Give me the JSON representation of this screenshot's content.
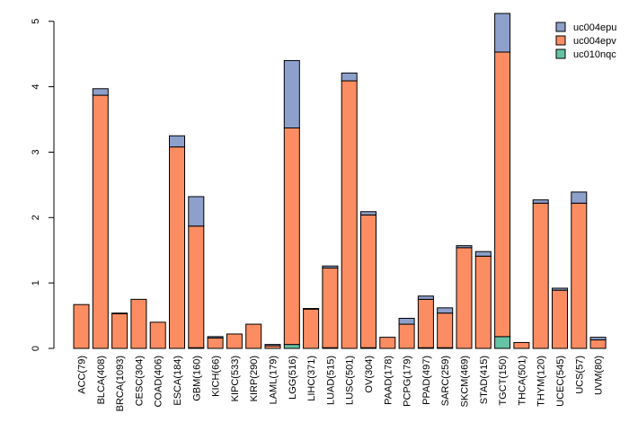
{
  "chart_data": {
    "type": "bar",
    "stacked": true,
    "categories": [
      "ACC(79)",
      "BLCA(408)",
      "BRCA(1093)",
      "CESC(304)",
      "COAD(406)",
      "ESCA(184)",
      "GBM(160)",
      "KICH(66)",
      "KIPC(533)",
      "KIRP(290)",
      "LAML(179)",
      "LGG(516)",
      "LIHC(371)",
      "LUAD(515)",
      "LUSC(501)",
      "OV(304)",
      "PAAD(178)",
      "PCPG(179)",
      "PPAD(497)",
      "SARC(259)",
      "SKCM(469)",
      "STAD(415)",
      "TGCT(150)",
      "THCA(501)",
      "THYM(120)",
      "UCEC(545)",
      "UCS(57)",
      "UVM(80)"
    ],
    "series": [
      {
        "name": "uc010nqc",
        "color": "#66c2a5",
        "values": [
          0,
          0,
          0,
          0,
          0,
          0,
          0.01,
          0,
          0,
          0,
          0,
          0.06,
          0,
          0.01,
          0,
          0.01,
          0,
          0,
          0.01,
          0.01,
          0,
          0,
          0.18,
          0,
          0,
          0,
          0,
          0
        ]
      },
      {
        "name": "uc004epv",
        "color": "#fc8d62",
        "values": [
          0.67,
          3.87,
          0.53,
          0.75,
          0.4,
          3.08,
          1.86,
          0.16,
          0.22,
          0.37,
          0.04,
          3.31,
          0.6,
          1.22,
          4.09,
          2.03,
          0.17,
          0.37,
          0.74,
          0.53,
          1.54,
          1.41,
          4.35,
          0.09,
          2.22,
          0.89,
          2.22,
          0.13
        ]
      },
      {
        "name": "uc004epu",
        "color": "#8da0cb",
        "values": [
          0,
          0.1,
          0.01,
          0,
          0,
          0.17,
          0.45,
          0.02,
          0,
          0,
          0.02,
          1.03,
          0.01,
          0.03,
          0.12,
          0.05,
          0,
          0.09,
          0.05,
          0.08,
          0.03,
          0.07,
          0.59,
          0,
          0.05,
          0.03,
          0.17,
          0.04
        ]
      }
    ],
    "legend_order": [
      "uc004epu",
      "uc004epv",
      "uc010nqc"
    ],
    "legend_position": "top-right",
    "y_ticks": [
      0,
      1,
      2,
      3,
      4,
      5
    ],
    "ylim": [
      0,
      5.12
    ],
    "title": "",
    "xlabel": "",
    "ylabel": ""
  }
}
